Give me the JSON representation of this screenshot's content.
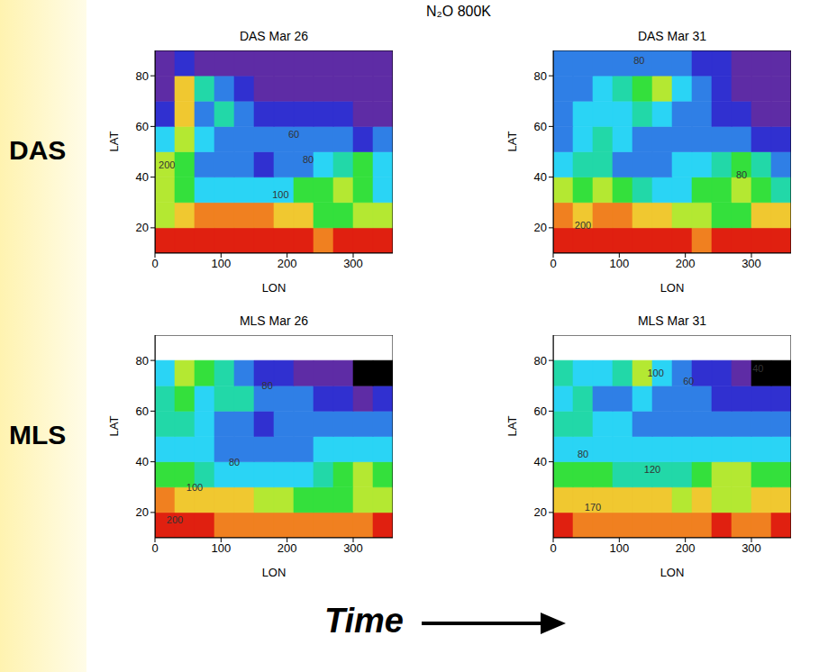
{
  "title": "N₂O 800K",
  "row_labels": [
    "DAS",
    "MLS"
  ],
  "footer": "Time",
  "color_scale": {
    "bounds": [
      0,
      30,
      45,
      60,
      80,
      100,
      120,
      140,
      160,
      180,
      200,
      260
    ],
    "colors": [
      "#000000",
      "#5e2ca5",
      "#3030d0",
      "#2f7fe6",
      "#2ad4f5",
      "#22d8a8",
      "#34e03c",
      "#b4e832",
      "#f0c830",
      "#f08020",
      "#e02010"
    ]
  },
  "chart_data": [
    {
      "type": "heatmap",
      "title": "DAS Mar 26",
      "xlabel": "LON",
      "ylabel": "LAT",
      "xlim": [
        0,
        360
      ],
      "xticks": [
        0,
        100,
        200,
        300
      ],
      "ylim": [
        10,
        90
      ],
      "yticks": [
        20,
        40,
        60,
        80
      ],
      "lon_edges": [
        0,
        30,
        60,
        90,
        120,
        150,
        180,
        210,
        240,
        270,
        300,
        330,
        360
      ],
      "lat_edges": [
        10,
        20,
        30,
        40,
        50,
        60,
        70,
        80,
        90
      ],
      "cells": [
        [
          205,
          200,
          205,
          210,
          210,
          210,
          205,
          200,
          195,
          200,
          205,
          205
        ],
        [
          150,
          165,
          180,
          185,
          185,
          180,
          170,
          165,
          130,
          120,
          140,
          150
        ],
        [
          140,
          130,
          95,
          90,
          85,
          90,
          95,
          120,
          130,
          140,
          120,
          90
        ],
        [
          150,
          120,
          75,
          70,
          65,
          50,
          70,
          75,
          80,
          100,
          130,
          80
        ],
        [
          80,
          140,
          90,
          70,
          60,
          65,
          70,
          65,
          60,
          60,
          55,
          60
        ],
        [
          45,
          160,
          75,
          110,
          60,
          55,
          55,
          50,
          50,
          45,
          40,
          40
        ],
        [
          35,
          170,
          100,
          65,
          50,
          40,
          40,
          40,
          35,
          35,
          35,
          35
        ],
        [
          35,
          45,
          40,
          40,
          40,
          35,
          35,
          35,
          35,
          35,
          35,
          35
        ]
      ],
      "annotations": [
        {
          "text": "60",
          "x": 210,
          "y": 57
        },
        {
          "text": "80",
          "x": 232,
          "y": 47
        },
        {
          "text": "100",
          "x": 190,
          "y": 33
        },
        {
          "text": "200",
          "x": 18,
          "y": 45
        }
      ]
    },
    {
      "type": "heatmap",
      "title": "DAS Mar 31",
      "xlabel": "LON",
      "ylabel": "LAT",
      "xlim": [
        0,
        360
      ],
      "xticks": [
        0,
        100,
        200,
        300
      ],
      "ylim": [
        10,
        90
      ],
      "yticks": [
        20,
        40,
        60,
        80
      ],
      "lon_edges": [
        0,
        30,
        60,
        90,
        120,
        150,
        180,
        210,
        240,
        270,
        300,
        330,
        360
      ],
      "lat_edges": [
        10,
        20,
        30,
        40,
        50,
        60,
        70,
        80,
        90
      ],
      "cells": [
        [
          205,
          205,
          200,
          200,
          205,
          210,
          205,
          195,
          200,
          205,
          200,
          205
        ],
        [
          185,
          170,
          190,
          185,
          165,
          160,
          150,
          150,
          130,
          130,
          160,
          170
        ],
        [
          140,
          135,
          150,
          130,
          110,
          95,
          90,
          120,
          135,
          150,
          120,
          100
        ],
        [
          90,
          110,
          110,
          75,
          70,
          70,
          80,
          90,
          110,
          130,
          110,
          70
        ],
        [
          70,
          95,
          100,
          80,
          65,
          65,
          65,
          65,
          65,
          60,
          55,
          50
        ],
        [
          65,
          90,
          85,
          90,
          100,
          85,
          65,
          60,
          50,
          45,
          40,
          40
        ],
        [
          60,
          75,
          85,
          100,
          135,
          145,
          90,
          60,
          45,
          40,
          40,
          35
        ],
        [
          60,
          60,
          60,
          65,
          75,
          70,
          60,
          50,
          45,
          40,
          35,
          40
        ]
      ],
      "annotations": [
        {
          "text": "80",
          "x": 130,
          "y": 86
        },
        {
          "text": "200",
          "x": 45,
          "y": 21
        },
        {
          "text": "80",
          "x": 285,
          "y": 41
        }
      ]
    },
    {
      "type": "heatmap",
      "title": "MLS Mar 26",
      "xlabel": "LON",
      "ylabel": "LAT",
      "xlim": [
        0,
        360
      ],
      "xticks": [
        0,
        100,
        200,
        300
      ],
      "ylim": [
        10,
        90
      ],
      "yticks": [
        20,
        40,
        60,
        80
      ],
      "lon_edges": [
        0,
        30,
        60,
        90,
        120,
        150,
        180,
        210,
        240,
        270,
        300,
        330,
        360
      ],
      "lat_edges": [
        10,
        20,
        30,
        40,
        50,
        60,
        70,
        80,
        90
      ],
      "cells": [
        [
          205,
          200,
          200,
          195,
          195,
          190,
          190,
          185,
          180,
          185,
          190,
          200
        ],
        [
          180,
          175,
          170,
          165,
          160,
          150,
          140,
          135,
          130,
          125,
          140,
          150
        ],
        [
          130,
          120,
          110,
          95,
          90,
          85,
          85,
          95,
          110,
          130,
          150,
          130
        ],
        [
          95,
          85,
          85,
          75,
          70,
          70,
          70,
          75,
          80,
          85,
          90,
          90
        ],
        [
          100,
          110,
          85,
          75,
          70,
          55,
          70,
          70,
          65,
          65,
          65,
          65
        ],
        [
          110,
          120,
          85,
          100,
          110,
          70,
          65,
          60,
          45,
          45,
          40,
          45
        ],
        [
          90,
          140,
          130,
          100,
          60,
          50,
          45,
          40,
          40,
          40,
          25,
          25
        ],
        [
          null,
          null,
          null,
          null,
          null,
          null,
          null,
          null,
          null,
          null,
          null,
          null
        ]
      ],
      "annotations": [
        {
          "text": "80",
          "x": 170,
          "y": 70
        },
        {
          "text": "80",
          "x": 120,
          "y": 40
        },
        {
          "text": "100",
          "x": 60,
          "y": 30
        },
        {
          "text": "200",
          "x": 30,
          "y": 17
        }
      ]
    },
    {
      "type": "heatmap",
      "title": "MLS Mar 31",
      "xlabel": "LON",
      "ylabel": "LAT",
      "xlim": [
        0,
        360
      ],
      "xticks": [
        0,
        100,
        200,
        300
      ],
      "ylim": [
        10,
        90
      ],
      "yticks": [
        20,
        40,
        60,
        80
      ],
      "lon_edges": [
        0,
        30,
        60,
        90,
        120,
        150,
        180,
        210,
        240,
        270,
        300,
        330,
        360
      ],
      "lat_edges": [
        10,
        20,
        30,
        40,
        50,
        60,
        70,
        80,
        90
      ],
      "cells": [
        [
          205,
          195,
          190,
          185,
          185,
          185,
          190,
          195,
          200,
          195,
          195,
          200
        ],
        [
          175,
          175,
          175,
          170,
          170,
          165,
          150,
          165,
          150,
          140,
          160,
          165
        ],
        [
          130,
          125,
          120,
          115,
          110,
          110,
          115,
          120,
          140,
          150,
          125,
          120
        ],
        [
          95,
          90,
          85,
          80,
          80,
          80,
          80,
          85,
          90,
          90,
          90,
          90
        ],
        [
          110,
          100,
          85,
          80,
          75,
          70,
          70,
          70,
          70,
          70,
          70,
          70
        ],
        [
          95,
          115,
          75,
          75,
          85,
          70,
          65,
          60,
          55,
          50,
          45,
          45
        ],
        [
          110,
          95,
          85,
          110,
          140,
          90,
          60,
          50,
          45,
          40,
          20,
          25
        ],
        [
          null,
          null,
          null,
          null,
          null,
          null,
          null,
          null,
          null,
          null,
          null,
          null
        ]
      ],
      "annotations": [
        {
          "text": "100",
          "x": 155,
          "y": 75
        },
        {
          "text": "60",
          "x": 205,
          "y": 72
        },
        {
          "text": "40",
          "x": 310,
          "y": 77
        },
        {
          "text": "120",
          "x": 150,
          "y": 37
        },
        {
          "text": "170",
          "x": 60,
          "y": 22
        },
        {
          "text": "80",
          "x": 45,
          "y": 43
        }
      ]
    }
  ]
}
